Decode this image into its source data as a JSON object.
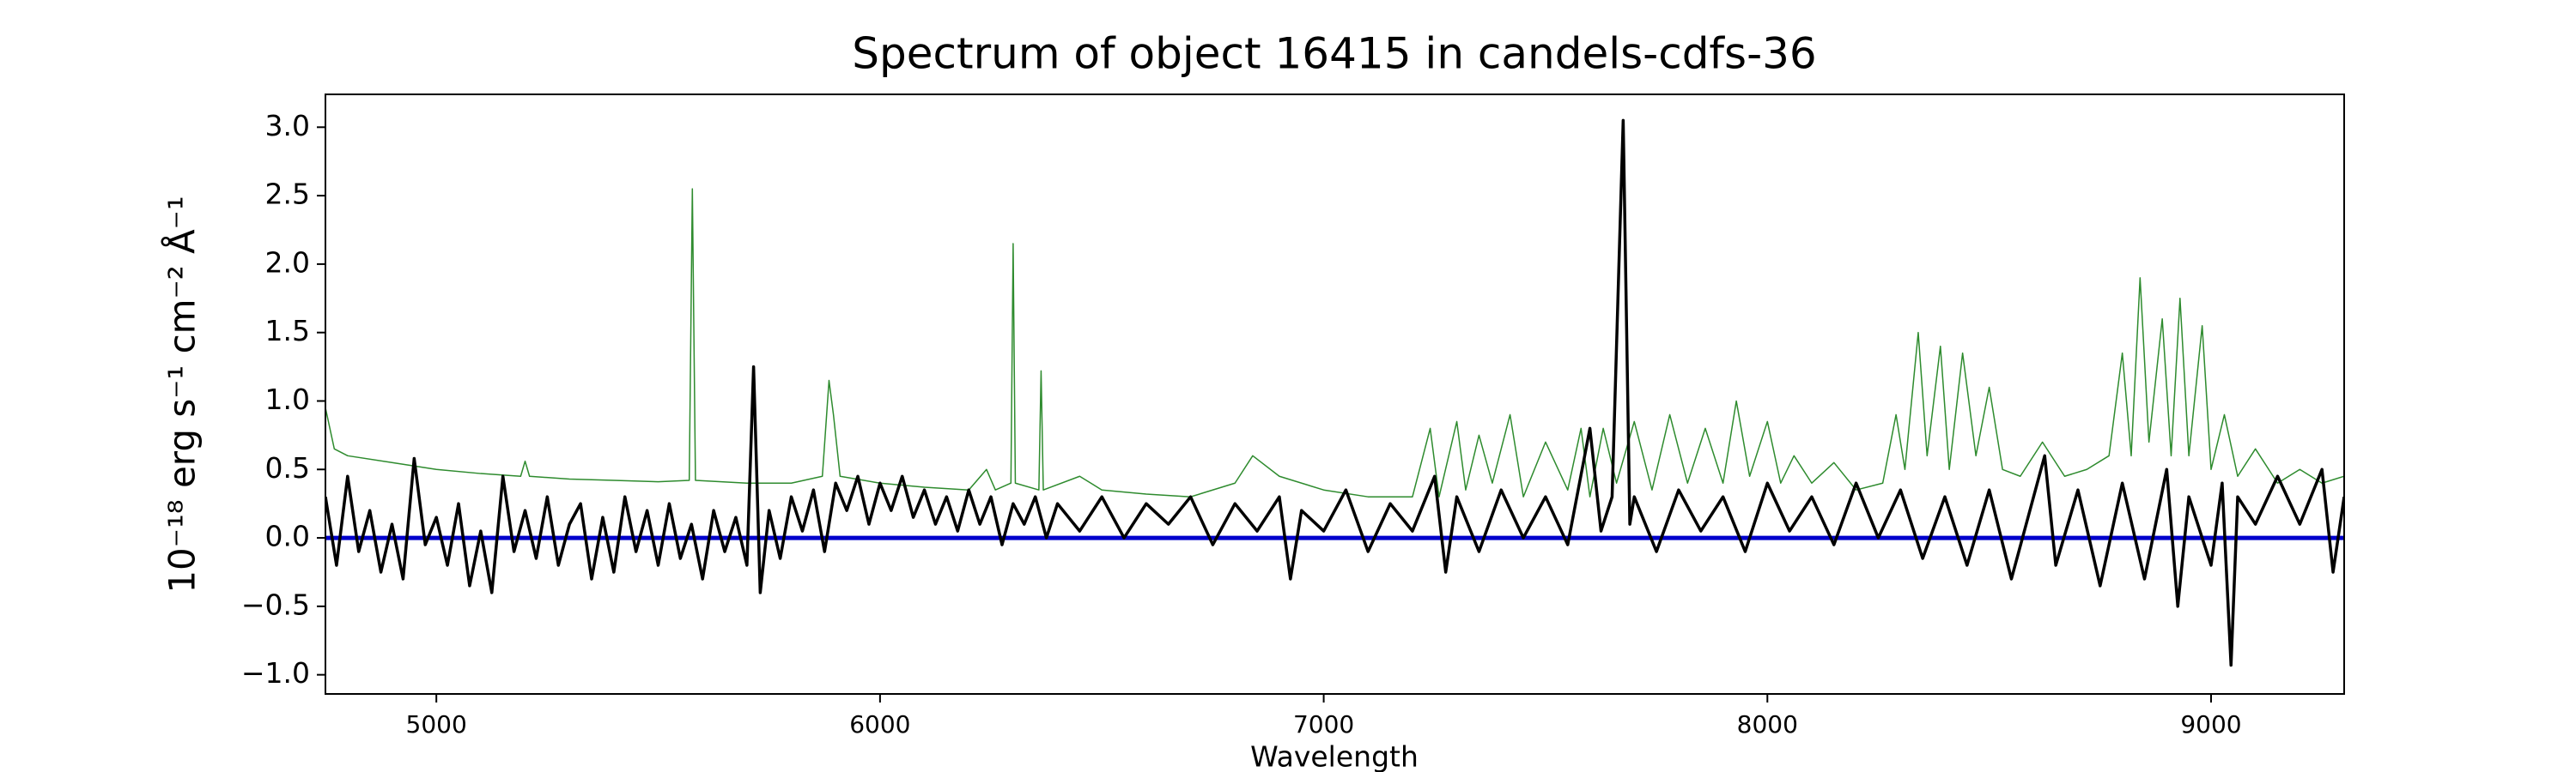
{
  "chart_data": {
    "type": "line",
    "title": "Spectrum of object 16415 in candels-cdfs-36",
    "x_label": "Wavelength",
    "y_label": "10⁻¹⁸ erg s⁻¹ cm⁻² Å⁻¹",
    "xlim": [
      4750,
      9300
    ],
    "ylim": [
      -1.14,
      3.24
    ],
    "xticks": [
      5000,
      6000,
      7000,
      8000,
      9000
    ],
    "yticks": [
      {
        "value": -1.0,
        "label": "−1.0"
      },
      {
        "value": -0.5,
        "label": "−0.5"
      },
      {
        "value": 0.0,
        "label": "0.0"
      },
      {
        "value": 0.5,
        "label": "0.5"
      },
      {
        "value": 1.0,
        "label": "1.0"
      },
      {
        "value": 1.5,
        "label": "1.5"
      },
      {
        "value": 2.0,
        "label": "2.0"
      },
      {
        "value": 2.5,
        "label": "2.5"
      },
      {
        "value": 3.0,
        "label": "3.0"
      }
    ],
    "series": [
      {
        "color": "#2e8b2e",
        "width": 1.5,
        "x": [
          4750,
          4770,
          4800,
          4900,
          5000,
          5100,
          5190,
          5200,
          5210,
          5300,
          5400,
          5500,
          5570,
          5577,
          5584,
          5700,
          5800,
          5870,
          5885,
          5895,
          5910,
          6000,
          6100,
          6200,
          6240,
          6260,
          6295,
          6300,
          6305,
          6358,
          6363,
          6368,
          6450,
          6500,
          6600,
          6700,
          6800,
          6840,
          6900,
          7000,
          7100,
          7200,
          7240,
          7260,
          7300,
          7320,
          7350,
          7380,
          7420,
          7450,
          7500,
          7550,
          7580,
          7600,
          7630,
          7660,
          7700,
          7740,
          7780,
          7820,
          7860,
          7900,
          7930,
          7960,
          8000,
          8030,
          8060,
          8100,
          8150,
          8200,
          8260,
          8290,
          8310,
          8340,
          8360,
          8390,
          8410,
          8440,
          8470,
          8500,
          8530,
          8570,
          8620,
          8670,
          8720,
          8770,
          8800,
          8820,
          8840,
          8860,
          8890,
          8910,
          8930,
          8950,
          8980,
          9000,
          9030,
          9060,
          9100,
          9150,
          9200,
          9250,
          9300
        ],
        "values": [
          0.95,
          0.65,
          0.6,
          0.55,
          0.5,
          0.47,
          0.45,
          0.56,
          0.45,
          0.43,
          0.42,
          0.41,
          0.42,
          2.55,
          0.42,
          0.4,
          0.4,
          0.45,
          1.15,
          0.9,
          0.45,
          0.4,
          0.37,
          0.35,
          0.5,
          0.35,
          0.4,
          2.15,
          0.4,
          0.35,
          1.22,
          0.35,
          0.45,
          0.35,
          0.32,
          0.3,
          0.4,
          0.6,
          0.45,
          0.35,
          0.3,
          0.3,
          0.8,
          0.3,
          0.85,
          0.35,
          0.75,
          0.4,
          0.9,
          0.3,
          0.7,
          0.35,
          0.8,
          0.3,
          0.8,
          0.4,
          0.85,
          0.35,
          0.9,
          0.4,
          0.8,
          0.4,
          1.0,
          0.45,
          0.85,
          0.4,
          0.6,
          0.4,
          0.55,
          0.35,
          0.4,
          0.9,
          0.5,
          1.5,
          0.6,
          1.4,
          0.5,
          1.35,
          0.6,
          1.1,
          0.5,
          0.45,
          0.7,
          0.45,
          0.5,
          0.6,
          1.35,
          0.6,
          1.9,
          0.7,
          1.6,
          0.6,
          1.75,
          0.6,
          1.55,
          0.5,
          0.9,
          0.45,
          0.65,
          0.4,
          0.5,
          0.4,
          0.45
        ]
      },
      {
        "color": "#0000cc",
        "width": 5,
        "x": [
          4750,
          9300
        ],
        "values": [
          0,
          0
        ]
      },
      {
        "color": "#000000",
        "width": 3.5,
        "x": [
          4750,
          4775,
          4800,
          4825,
          4850,
          4875,
          4900,
          4925,
          4950,
          4975,
          5000,
          5025,
          5050,
          5075,
          5100,
          5125,
          5150,
          5175,
          5200,
          5225,
          5250,
          5275,
          5300,
          5325,
          5350,
          5375,
          5400,
          5425,
          5450,
          5475,
          5500,
          5525,
          5550,
          5575,
          5600,
          5625,
          5650,
          5675,
          5700,
          5715,
          5730,
          5750,
          5775,
          5800,
          5825,
          5850,
          5875,
          5900,
          5925,
          5950,
          5975,
          6000,
          6025,
          6050,
          6075,
          6100,
          6125,
          6150,
          6175,
          6200,
          6225,
          6250,
          6275,
          6300,
          6325,
          6350,
          6375,
          6400,
          6450,
          6500,
          6550,
          6600,
          6650,
          6700,
          6750,
          6800,
          6850,
          6900,
          6925,
          6950,
          7000,
          7050,
          7100,
          7150,
          7200,
          7250,
          7275,
          7300,
          7350,
          7400,
          7450,
          7500,
          7550,
          7600,
          7625,
          7650,
          7675,
          7690,
          7700,
          7750,
          7800,
          7850,
          7900,
          7950,
          8000,
          8050,
          8100,
          8150,
          8200,
          8250,
          8300,
          8350,
          8400,
          8450,
          8500,
          8550,
          8600,
          8625,
          8650,
          8700,
          8750,
          8800,
          8850,
          8900,
          8925,
          8950,
          9000,
          9025,
          9045,
          9060,
          9100,
          9150,
          9200,
          9250,
          9275,
          9300
        ],
        "values": [
          0.3,
          -0.2,
          0.45,
          -0.1,
          0.2,
          -0.25,
          0.1,
          -0.3,
          0.58,
          -0.05,
          0.15,
          -0.2,
          0.25,
          -0.35,
          0.05,
          -0.4,
          0.45,
          -0.1,
          0.2,
          -0.15,
          0.3,
          -0.2,
          0.1,
          0.25,
          -0.3,
          0.15,
          -0.25,
          0.3,
          -0.1,
          0.2,
          -0.2,
          0.25,
          -0.15,
          0.1,
          -0.3,
          0.2,
          -0.1,
          0.15,
          -0.2,
          1.25,
          -0.4,
          0.2,
          -0.15,
          0.3,
          0.05,
          0.35,
          -0.1,
          0.4,
          0.2,
          0.45,
          0.1,
          0.4,
          0.2,
          0.45,
          0.15,
          0.35,
          0.1,
          0.3,
          0.05,
          0.35,
          0.1,
          0.3,
          -0.05,
          0.25,
          0.1,
          0.3,
          0.0,
          0.25,
          0.05,
          0.3,
          0.0,
          0.25,
          0.1,
          0.3,
          -0.05,
          0.25,
          0.05,
          0.3,
          -0.3,
          0.2,
          0.05,
          0.35,
          -0.1,
          0.25,
          0.05,
          0.45,
          -0.25,
          0.3,
          -0.1,
          0.35,
          0.0,
          0.3,
          -0.05,
          0.8,
          0.05,
          0.3,
          3.05,
          0.1,
          0.3,
          -0.1,
          0.35,
          0.05,
          0.3,
          -0.1,
          0.4,
          0.05,
          0.3,
          -0.05,
          0.4,
          0.0,
          0.35,
          -0.15,
          0.3,
          -0.2,
          0.35,
          -0.3,
          0.3,
          0.6,
          -0.2,
          0.35,
          -0.35,
          0.4,
          -0.3,
          0.5,
          -0.5,
          0.3,
          -0.2,
          0.4,
          -0.93,
          0.3,
          0.1,
          0.45,
          0.1,
          0.5,
          -0.25,
          0.3
        ]
      }
    ]
  }
}
